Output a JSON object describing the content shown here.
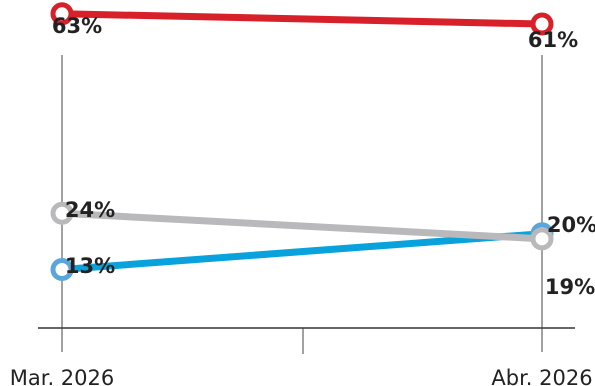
{
  "chart_data": {
    "type": "line",
    "categories": [
      "Mar. 2026",
      "Abr. 2026"
    ],
    "series": [
      {
        "values": [
          63,
          61
        ],
        "labels": [
          "63%",
          "61%"
        ],
        "color": "#d8202a"
      },
      {
        "values": [
          24,
          19
        ],
        "labels": [
          "24%",
          "19%"
        ],
        "color": "#b9b9bb"
      },
      {
        "values": [
          13,
          20
        ],
        "labels": [
          "13%",
          "20%"
        ],
        "color": "#0aa2dc",
        "marker_color": "#5aa6da"
      }
    ],
    "ylim": [
      0,
      70
    ],
    "grid": false,
    "legend": "none"
  }
}
